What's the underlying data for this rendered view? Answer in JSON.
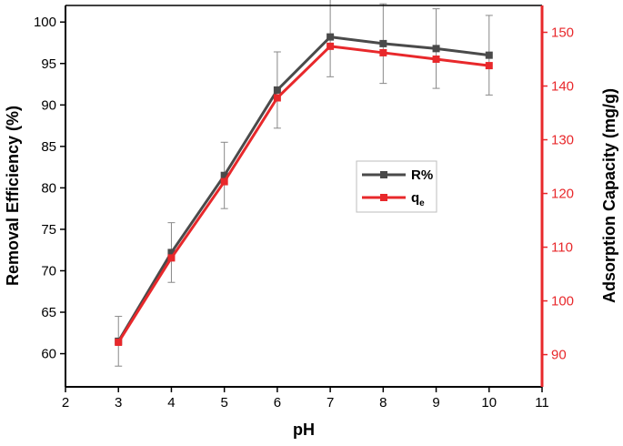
{
  "chart_data": {
    "type": "line",
    "x": [
      3,
      4,
      5,
      6,
      7,
      8,
      9,
      10
    ],
    "xlabel": "pH",
    "xlim": [
      2,
      11
    ],
    "xticks": [
      2,
      3,
      4,
      5,
      6,
      7,
      8,
      9,
      10,
      11
    ],
    "y_left": {
      "label": "Removal Efficiency (%)",
      "lim": [
        56,
        102
      ],
      "ticks": [
        60,
        65,
        70,
        75,
        80,
        85,
        90,
        95,
        100
      ],
      "color": "#000000"
    },
    "y_right": {
      "label": "Adsorption Capacity (mg/g)",
      "lim": [
        84,
        155
      ],
      "ticks": [
        90,
        100,
        110,
        120,
        130,
        140,
        150
      ],
      "color": "#e8282b"
    },
    "series": [
      {
        "name": "R%",
        "axis": "left",
        "color": "#4a4a4a",
        "values": [
          61.5,
          72.2,
          81.5,
          91.8,
          98.2,
          97.4,
          96.8,
          96.0
        ],
        "error": [
          3.0,
          3.6,
          4.0,
          4.6,
          4.8,
          4.8,
          4.8,
          4.8
        ]
      },
      {
        "name": "q",
        "name_sub": "e",
        "axis": "right",
        "color": "#e8282b",
        "values": [
          92.3,
          108.0,
          122.2,
          137.8,
          147.4,
          146.2,
          145.0,
          143.8
        ],
        "error": []
      }
    ],
    "legend_position": "center-right",
    "grid": false
  }
}
